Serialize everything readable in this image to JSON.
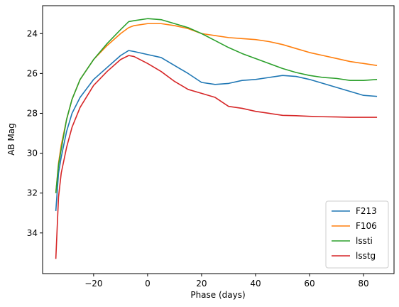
{
  "chart_data": {
    "type": "line",
    "x_label": "Phase (days)",
    "y_label": "AB Mag",
    "x": [
      -34,
      -33,
      -32,
      -30,
      -28,
      -25,
      -20,
      -15,
      -10,
      -7,
      -5,
      0,
      5,
      10,
      15,
      20,
      25,
      30,
      35,
      40,
      45,
      50,
      55,
      60,
      65,
      70,
      75,
      80,
      85
    ],
    "series": [
      {
        "name": "F213",
        "color": "#1f77b4",
        "values": [
          32.9,
          31.0,
          30.2,
          28.9,
          28.0,
          27.2,
          26.3,
          25.7,
          25.1,
          24.85,
          24.9,
          25.05,
          25.2,
          25.6,
          26.0,
          26.45,
          26.55,
          26.5,
          26.35,
          26.3,
          26.2,
          26.1,
          26.15,
          26.3,
          26.5,
          26.7,
          26.9,
          27.1,
          27.15
        ]
      },
      {
        "name": "F106",
        "color": "#ff7f0e",
        "values": [
          32.0,
          30.5,
          29.6,
          28.3,
          27.3,
          26.3,
          25.3,
          24.6,
          24.0,
          23.7,
          23.6,
          23.5,
          23.5,
          23.6,
          23.75,
          24.0,
          24.1,
          24.2,
          24.25,
          24.3,
          24.4,
          24.55,
          24.75,
          24.95,
          25.1,
          25.25,
          25.4,
          25.5,
          25.6
        ]
      },
      {
        "name": "lssti",
        "color": "#2ca02c",
        "values": [
          32.0,
          30.6,
          29.8,
          28.3,
          27.3,
          26.3,
          25.3,
          24.5,
          23.8,
          23.4,
          23.35,
          23.25,
          23.3,
          23.5,
          23.7,
          24.0,
          24.35,
          24.7,
          25.0,
          25.25,
          25.5,
          25.75,
          25.95,
          26.1,
          26.2,
          26.25,
          26.35,
          26.35,
          26.3
        ]
      },
      {
        "name": "lsstg",
        "color": "#d62728",
        "values": [
          35.3,
          32.2,
          31.0,
          29.7,
          28.7,
          27.7,
          26.6,
          25.9,
          25.3,
          25.1,
          25.15,
          25.5,
          25.9,
          26.4,
          26.8,
          27.0,
          27.2,
          27.65,
          27.75,
          27.9,
          28.0,
          28.1,
          28.12,
          28.15,
          28.17,
          28.18,
          28.2,
          28.2,
          28.2
        ]
      }
    ],
    "xlim": [
      -38.9,
      91.3
    ],
    "ylim": [
      36.04,
      22.6
    ],
    "xticks": [
      {
        "value": -20,
        "label": "−20"
      },
      0,
      20,
      40,
      60,
      80
    ],
    "yticks": [
      24,
      26,
      28,
      30,
      32,
      34
    ],
    "legend": "lower right"
  }
}
